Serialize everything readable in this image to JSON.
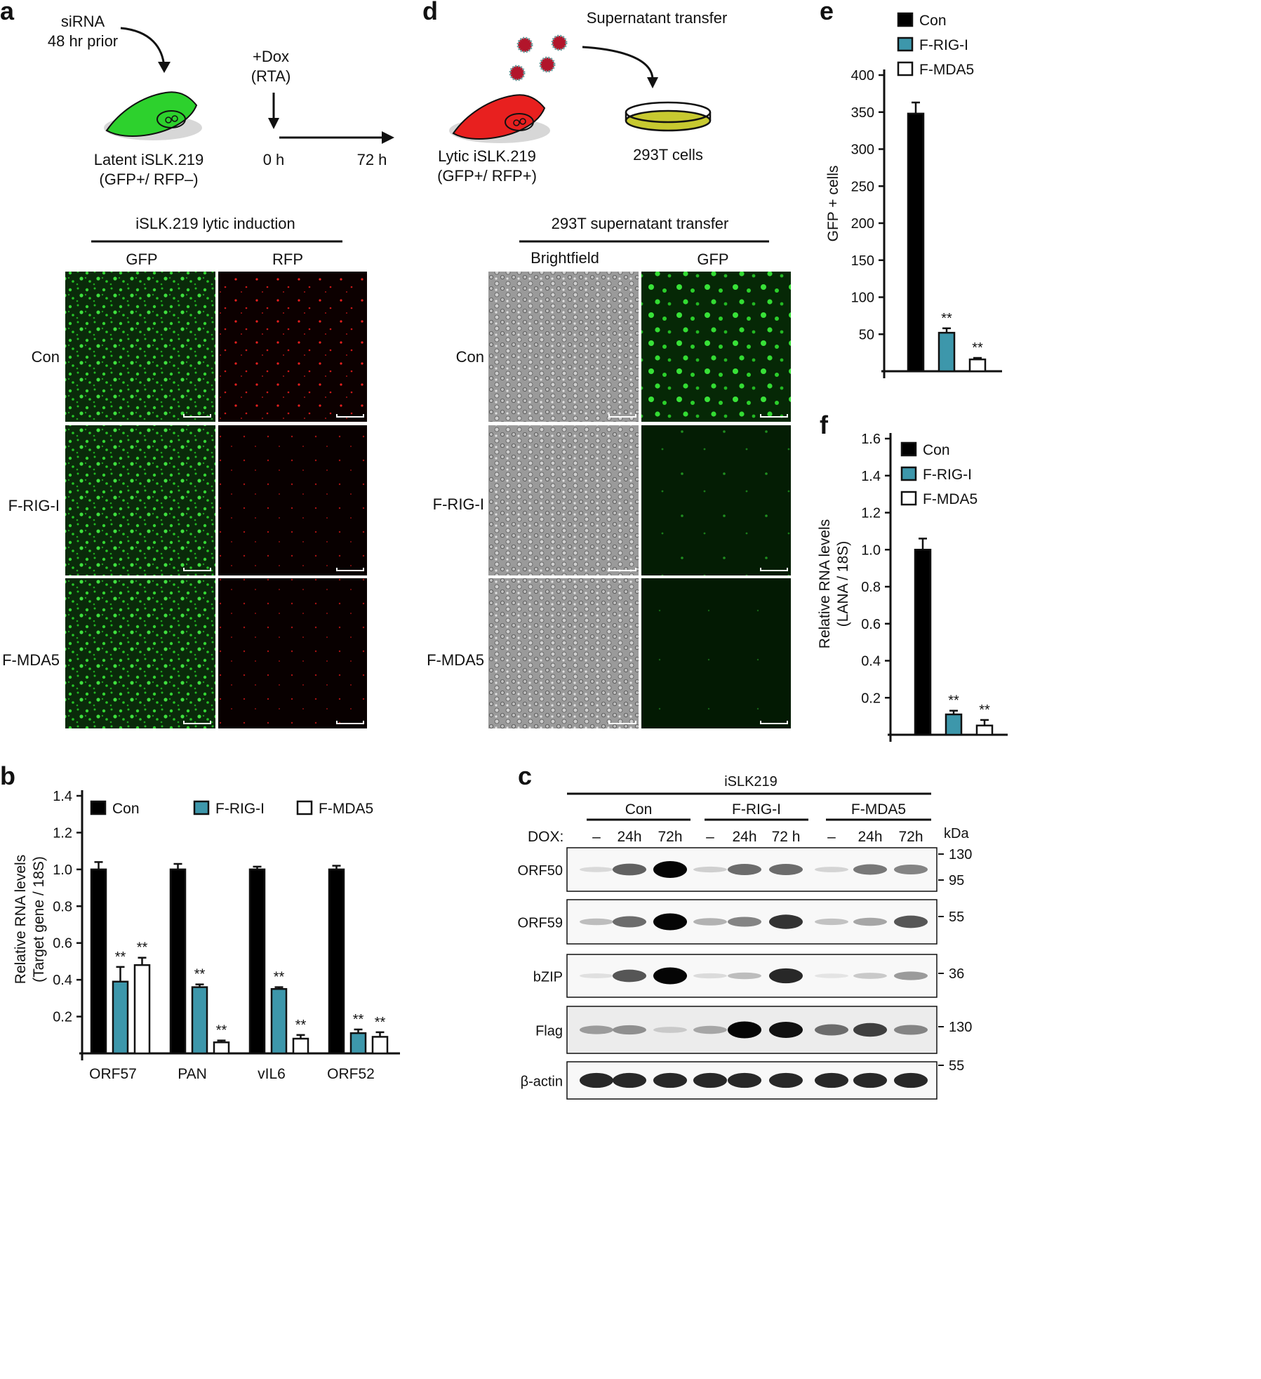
{
  "panel_letters": [
    "a",
    "b",
    "c",
    "d",
    "e",
    "f"
  ],
  "colors": {
    "con": "#000000",
    "rig": "#3d97ab",
    "mda": "#ffffff",
    "gfp": "#2dd12d",
    "rfp": "#e8201f",
    "dish": "#c7c930",
    "virion": "#b2152b"
  },
  "a": {
    "sirna": [
      "siRNA",
      "48 hr prior"
    ],
    "dox": [
      "+Dox",
      "(RTA)"
    ],
    "cell": [
      "Latent iSLK.219",
      "(GFP+/ RFP–)"
    ],
    "times": [
      "0 h",
      "72 h"
    ],
    "section": "iSLK.219 lytic induction",
    "cols": [
      "GFP",
      "RFP"
    ],
    "rows": [
      "Con",
      "F-RIG-I",
      "F-MDA5"
    ]
  },
  "d": {
    "transfer": "Supernatant transfer",
    "cell": [
      "Lytic iSLK.219",
      "(GFP+/ RFP+)"
    ],
    "dish": "293T cells",
    "section": "293T supernatant transfer",
    "cols": [
      "Brightfield",
      "GFP"
    ],
    "rows": [
      "Con",
      "F-RIG-I",
      "F-MDA5"
    ]
  },
  "c": {
    "title": "iSLK219",
    "groups": [
      "Con",
      "F-RIG-I",
      "F-MDA5"
    ],
    "dox_label": "DOX:",
    "lanes": [
      "–",
      "24h",
      "72h",
      "–",
      "24h",
      "72 h",
      "–",
      "24h",
      "72h"
    ],
    "kda_label": "kDa",
    "blots": [
      {
        "name": "ORF50",
        "intensity": [
          0.08,
          0.6,
          1.0,
          0.12,
          0.55,
          0.55,
          0.1,
          0.5,
          0.45
        ],
        "markers": [
          "130",
          "95"
        ]
      },
      {
        "name": "ORF59",
        "intensity": [
          0.2,
          0.55,
          1.0,
          0.25,
          0.45,
          0.8,
          0.18,
          0.3,
          0.65
        ],
        "markers": [
          "55"
        ]
      },
      {
        "name": "bZIP",
        "intensity": [
          0.05,
          0.65,
          1.0,
          0.07,
          0.2,
          0.85,
          0.03,
          0.15,
          0.35
        ],
        "markers": [
          "36"
        ]
      },
      {
        "name": "Flag",
        "intensity": [
          0.35,
          0.4,
          0.15,
          0.3,
          1.0,
          0.95,
          0.55,
          0.75,
          0.45
        ],
        "markers": [
          "130"
        ]
      },
      {
        "name": "β-actin",
        "intensity": [
          0.85,
          0.85,
          0.85,
          0.85,
          0.85,
          0.85,
          0.85,
          0.85,
          0.85
        ],
        "markers": [
          "55"
        ]
      }
    ]
  },
  "chart_data": [
    {
      "panel": "b",
      "type": "bar",
      "ylabel": [
        "Relative RNA levels",
        "(Target gene / 18S)"
      ],
      "ylim": [
        0,
        1.4
      ],
      "yticks": [
        "0.2",
        "0.4",
        "0.6",
        "0.8",
        "1.0",
        "1.2",
        "1.4"
      ],
      "categories": [
        "ORF57",
        "PAN",
        "vIL6",
        "ORF52"
      ],
      "series": [
        {
          "name": "Con",
          "values": [
            1.0,
            1.0,
            1.0,
            1.0
          ],
          "err": [
            0.04,
            0.03,
            0.015,
            0.02
          ]
        },
        {
          "name": "F-RIG-I",
          "values": [
            0.39,
            0.36,
            0.35,
            0.11
          ],
          "err": [
            0.08,
            0.015,
            0.01,
            0.02
          ]
        },
        {
          "name": "F-MDA5",
          "values": [
            0.48,
            0.06,
            0.08,
            0.09
          ],
          "err": [
            0.04,
            0.01,
            0.02,
            0.025
          ]
        }
      ],
      "significance": [
        "**"
      ],
      "legend": "top"
    },
    {
      "panel": "e",
      "type": "bar",
      "ylabel": [
        "GFP + cells"
      ],
      "ylim": [
        0,
        400
      ],
      "yticks": [
        "50",
        "100",
        "150",
        "200",
        "250",
        "300",
        "350",
        "400"
      ],
      "series": [
        {
          "name": "Con",
          "values": [
            348
          ],
          "err": [
            15
          ]
        },
        {
          "name": "F-RIG-I",
          "values": [
            52
          ],
          "err": [
            6
          ]
        },
        {
          "name": "F-MDA5",
          "values": [
            16
          ],
          "err": [
            2
          ]
        }
      ],
      "significance": [
        "**"
      ],
      "legend": "top-left"
    },
    {
      "panel": "f",
      "type": "bar",
      "ylabel": [
        "Relative RNA levels",
        "(LANA / 18S)"
      ],
      "ylim": [
        0,
        1.6
      ],
      "yticks": [
        "0.2",
        "0.4",
        "0.6",
        "0.8",
        "1.0",
        "1.2",
        "1.4",
        "1.6"
      ],
      "series": [
        {
          "name": "Con",
          "values": [
            1.0
          ],
          "err": [
            0.06
          ]
        },
        {
          "name": "F-RIG-I",
          "values": [
            0.11
          ],
          "err": [
            0.02
          ]
        },
        {
          "name": "F-MDA5",
          "values": [
            0.05
          ],
          "err": [
            0.03
          ]
        }
      ],
      "significance": [
        "**"
      ],
      "legend": "top-right"
    }
  ]
}
